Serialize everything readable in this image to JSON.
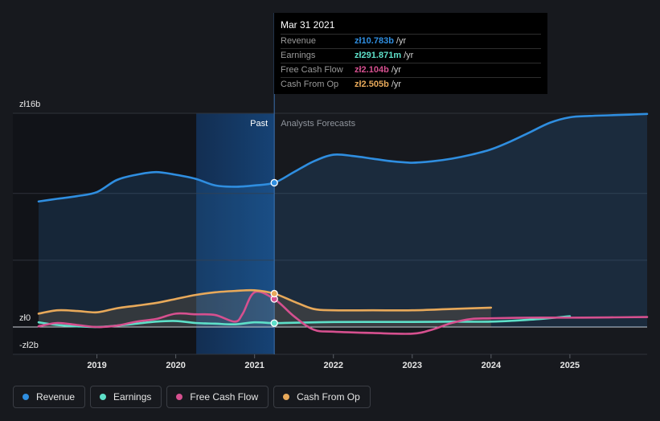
{
  "tooltip": {
    "date": "Mar 31 2021",
    "rows": [
      {
        "label": "Revenue",
        "value": "zł10.783b",
        "unit": "/yr",
        "color": "#2f8ee0"
      },
      {
        "label": "Earnings",
        "value": "zł291.871m",
        "unit": "/yr",
        "color": "#5ee0c9"
      },
      {
        "label": "Free Cash Flow",
        "value": "zł2.104b",
        "unit": "/yr",
        "color": "#d6508f"
      },
      {
        "label": "Cash From Op",
        "value": "zł2.505b",
        "unit": "/yr",
        "color": "#e8a95a"
      }
    ]
  },
  "legend": [
    {
      "label": "Revenue",
      "color": "#2f8ee0"
    },
    {
      "label": "Earnings",
      "color": "#5ee0c9"
    },
    {
      "label": "Free Cash Flow",
      "color": "#d6508f"
    },
    {
      "label": "Cash From Op",
      "color": "#e8a95a"
    }
  ],
  "chart_data": {
    "type": "line",
    "x_unit": "year",
    "xlim": [
      2018.26,
      2025.98
    ],
    "ylim": [
      -2,
      16
    ],
    "y_ticks": [
      {
        "value": 16,
        "label": "zł16b"
      },
      {
        "value": 0,
        "label": "zł0"
      },
      {
        "value": -2,
        "label": "-zł2b"
      }
    ],
    "x_ticks": [
      {
        "value": 2019,
        "label": "2019"
      },
      {
        "value": 2020,
        "label": "2020"
      },
      {
        "value": 2021,
        "label": "2021"
      },
      {
        "value": 2022,
        "label": "2022"
      },
      {
        "value": 2023,
        "label": "2023"
      },
      {
        "value": 2024,
        "label": "2024"
      },
      {
        "value": 2025,
        "label": "2025"
      }
    ],
    "gridlines": [
      16,
      10,
      5,
      0,
      -2
    ],
    "past_label": "Past",
    "forecast_label": "Analysts Forecasts",
    "past_region": [
      2019.26,
      2021.25
    ],
    "highlight_region": [
      2020.26,
      2021.25
    ],
    "cursor_x": 2021.25,
    "series": [
      {
        "name": "Revenue",
        "color": "#2f8ee0",
        "fill": true,
        "x": [
          2018.26,
          2018.5,
          2018.75,
          2019.0,
          2019.25,
          2019.5,
          2019.75,
          2020.0,
          2020.25,
          2020.5,
          2020.75,
          2021.0,
          2021.25,
          2021.5,
          2021.75,
          2022.0,
          2022.25,
          2022.5,
          2022.75,
          2023.0,
          2023.25,
          2023.5,
          2023.75,
          2024.0,
          2024.25,
          2024.5,
          2024.75,
          2025.0,
          2025.25,
          2025.5,
          2025.75,
          2025.98
        ],
        "y": [
          9.4,
          9.6,
          9.8,
          10.1,
          11.0,
          11.4,
          11.6,
          11.4,
          11.1,
          10.6,
          10.5,
          10.6,
          10.8,
          11.6,
          12.4,
          12.9,
          12.8,
          12.6,
          12.4,
          12.3,
          12.4,
          12.6,
          12.9,
          13.3,
          13.9,
          14.6,
          15.3,
          15.7,
          15.8,
          15.85,
          15.9,
          15.95
        ]
      },
      {
        "name": "Earnings",
        "color": "#5ee0c9",
        "fill": false,
        "x": [
          2018.26,
          2018.5,
          2018.75,
          2019.0,
          2019.25,
          2019.5,
          2019.75,
          2020.0,
          2020.25,
          2020.5,
          2020.75,
          2021.0,
          2021.25,
          2021.5,
          2022.0,
          2022.5,
          2023.0,
          2023.5,
          2024.0,
          2024.5,
          2025.0
        ],
        "y": [
          0.35,
          0.15,
          0.05,
          0.0,
          0.1,
          0.25,
          0.4,
          0.45,
          0.3,
          0.25,
          0.2,
          0.35,
          0.29,
          0.32,
          0.37,
          0.38,
          0.38,
          0.4,
          0.4,
          0.55,
          0.8
        ]
      },
      {
        "name": "Free Cash Flow",
        "color": "#d6508f",
        "fill": false,
        "x": [
          2018.26,
          2018.5,
          2018.75,
          2019.0,
          2019.25,
          2019.5,
          2019.75,
          2020.0,
          2020.25,
          2020.5,
          2020.75,
          2020.85,
          2021.0,
          2021.25,
          2021.5,
          2021.75,
          2022.0,
          2022.5,
          2023.0,
          2023.25,
          2023.5,
          2023.75,
          2024.0,
          2024.5,
          2025.0,
          2025.5,
          2025.98
        ],
        "y": [
          0.05,
          0.3,
          0.15,
          0.0,
          0.1,
          0.4,
          0.6,
          1.0,
          0.95,
          0.9,
          0.4,
          1.0,
          2.6,
          2.1,
          0.8,
          -0.2,
          -0.35,
          -0.45,
          -0.5,
          -0.2,
          0.3,
          0.6,
          0.65,
          0.7,
          0.7,
          0.72,
          0.75
        ]
      },
      {
        "name": "Cash From Op",
        "color": "#e8a95a",
        "fill": true,
        "x": [
          2018.26,
          2018.5,
          2018.75,
          2019.0,
          2019.25,
          2019.5,
          2019.75,
          2020.0,
          2020.25,
          2020.5,
          2020.75,
          2021.0,
          2021.25,
          2021.5,
          2021.75,
          2022.0,
          2022.5,
          2023.0,
          2023.5,
          2024.0
        ],
        "y": [
          1.0,
          1.25,
          1.2,
          1.1,
          1.4,
          1.6,
          1.8,
          2.1,
          2.4,
          2.6,
          2.7,
          2.75,
          2.5,
          1.9,
          1.35,
          1.25,
          1.25,
          1.25,
          1.35,
          1.45
        ]
      }
    ]
  }
}
